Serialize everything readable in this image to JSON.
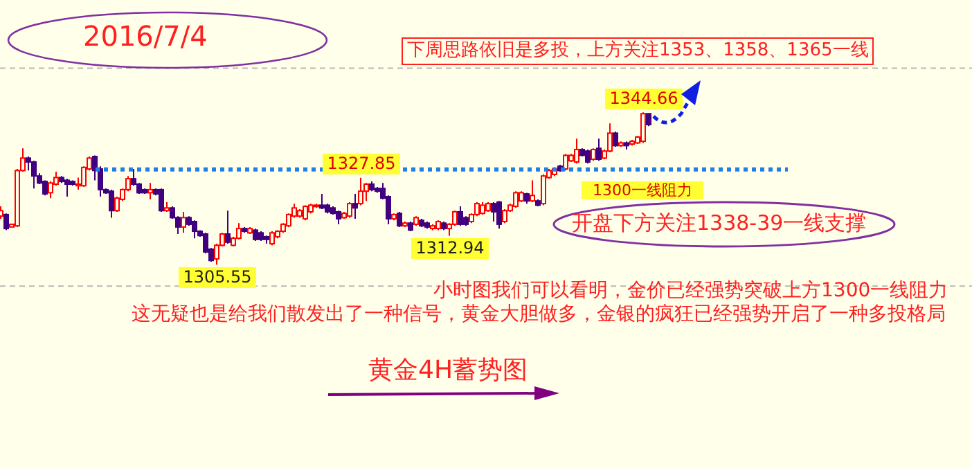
{
  "chart_data": {
    "type": "candlestick",
    "title": "2016/7/4",
    "annotations": [
      "下周思路依旧是多投，上方关注1353、1358、1365一线",
      "开盘下方关注1338-39一线支撑",
      "小时图我们可以看明，金价已经强势突破上方1300一线阻力",
      "这无疑也是给我们散发出了一种信号，黄金大胆做多，金银的疯狂已经强势开启了一种多投格局",
      "黄金4H蓄势图",
      {
        "text": "1344.66",
        "y": 1344.66
      },
      {
        "text": "1327.85",
        "y": 1327.85
      },
      {
        "text": "1305.55",
        "y": 1305.55
      },
      {
        "text": "1312.94",
        "y": 1312.94
      }
    ],
    "categories": [
      null,
      null,
      null,
      null,
      null,
      null,
      null,
      null,
      null,
      null,
      null,
      null,
      null,
      null,
      null,
      null,
      null,
      null,
      null,
      null,
      null,
      null,
      null,
      null,
      null,
      null,
      null,
      null,
      null,
      null,
      null,
      null,
      null,
      null,
      null,
      null,
      null,
      null,
      null,
      null,
      null,
      null,
      null,
      null,
      null,
      null,
      null,
      null,
      null,
      null,
      null,
      null,
      null,
      null,
      null,
      null,
      null,
      null,
      null,
      null,
      null,
      null,
      null,
      null,
      null,
      null,
      null,
      null,
      null,
      null,
      null,
      null,
      null,
      null,
      null,
      null,
      null,
      null,
      null,
      null,
      null,
      null,
      null,
      null,
      null,
      null,
      null,
      null,
      null,
      null,
      null,
      null,
      null,
      null,
      null,
      null,
      null,
      null,
      null,
      null,
      null,
      null,
      null,
      null,
      null,
      null,
      null,
      null,
      null,
      null,
      null,
      null,
      null,
      null,
      null,
      null,
      null,
      null
    ],
    "ohlc": [
      [
        1318.0,
        1320.5,
        1317.3,
        1319.4
      ],
      [
        1318.4,
        1318.7,
        1314.4,
        1314.8
      ],
      [
        1315.2,
        1315.9,
        1315.2,
        1315.9
      ],
      [
        1315.5,
        1330.1,
        1315.2,
        1329.7
      ],
      [
        1329.7,
        1335.4,
        1329.4,
        1332.9
      ],
      [
        1332.9,
        1333.3,
        1329.7,
        1331.9
      ],
      [
        1331.9,
        1332.2,
        1325.1,
        1328.3
      ],
      [
        1328.3,
        1329.0,
        1326.2,
        1326.5
      ],
      [
        1326.9,
        1327.2,
        1323.3,
        1323.7
      ],
      [
        1324.0,
        1326.9,
        1322.6,
        1326.5
      ],
      [
        1326.2,
        1329.4,
        1325.8,
        1327.9
      ],
      [
        1327.9,
        1328.3,
        1326.5,
        1326.9
      ],
      [
        1327.2,
        1327.6,
        1323.0,
        1326.2
      ],
      [
        1326.9,
        1327.2,
        1325.8,
        1326.2
      ],
      [
        1325.8,
        1327.9,
        1324.8,
        1326.2
      ],
      [
        1325.8,
        1330.8,
        1325.5,
        1330.5
      ],
      [
        1330.1,
        1333.3,
        1329.7,
        1332.9
      ],
      [
        1333.3,
        1333.6,
        1327.2,
        1329.7
      ],
      [
        1330.1,
        1330.8,
        1323.0,
        1324.8
      ],
      [
        1324.8,
        1325.1,
        1323.7,
        1324.0
      ],
      [
        1324.4,
        1324.8,
        1317.6,
        1319.4
      ],
      [
        1319.4,
        1323.0,
        1319.1,
        1322.6
      ],
      [
        1322.3,
        1325.1,
        1321.9,
        1324.8
      ],
      [
        1324.8,
        1328.3,
        1324.4,
        1327.6
      ],
      [
        1327.6,
        1330.1,
        1325.8,
        1326.2
      ],
      [
        1326.2,
        1326.5,
        1323.7,
        1324.0
      ],
      [
        1324.8,
        1325.1,
        1323.7,
        1324.0
      ],
      [
        1324.0,
        1326.5,
        1322.3,
        1324.8
      ],
      [
        1324.8,
        1325.1,
        1323.3,
        1323.7
      ],
      [
        1324.8,
        1325.1,
        1319.1,
        1319.4
      ],
      [
        1319.4,
        1321.6,
        1319.1,
        1320.1
      ],
      [
        1320.1,
        1320.5,
        1317.3,
        1317.6
      ],
      [
        1317.6,
        1318.0,
        1313.4,
        1315.2
      ],
      [
        1315.2,
        1319.1,
        1313.7,
        1317.6
      ],
      [
        1317.6,
        1318.0,
        1315.5,
        1315.9
      ],
      [
        1316.6,
        1316.9,
        1312.3,
        1314.1
      ],
      [
        1314.1,
        1314.4,
        1312.7,
        1313.0
      ],
      [
        1313.4,
        1313.7,
        1308.4,
        1308.8
      ],
      [
        1309.5,
        1309.8,
        1306.3,
        1306.6
      ],
      [
        1307.0,
        1310.9,
        1305.55,
        1310.5
      ],
      [
        1310.5,
        1313.7,
        1310.2,
        1313.4
      ],
      [
        1313.4,
        1319.4,
        1310.9,
        1311.3
      ],
      [
        1310.5,
        1312.7,
        1310.2,
        1312.3
      ],
      [
        1312.3,
        1316.2,
        1312.0,
        1314.8
      ],
      [
        1314.8,
        1315.2,
        1313.7,
        1314.1
      ],
      [
        1313.7,
        1315.2,
        1313.4,
        1314.8
      ],
      [
        1314.4,
        1314.8,
        1311.6,
        1312.0
      ],
      [
        1313.7,
        1314.1,
        1311.6,
        1312.0
      ],
      [
        1312.7,
        1313.0,
        1310.9,
        1312.0
      ],
      [
        1310.9,
        1314.1,
        1310.5,
        1313.7
      ],
      [
        1312.7,
        1314.4,
        1312.3,
        1314.1
      ],
      [
        1314.1,
        1316.2,
        1313.7,
        1315.9
      ],
      [
        1315.5,
        1318.7,
        1315.2,
        1318.4
      ],
      [
        1318.0,
        1321.2,
        1317.6,
        1320.1
      ],
      [
        1318.0,
        1319.8,
        1317.6,
        1319.4
      ],
      [
        1317.3,
        1320.8,
        1316.9,
        1320.5
      ],
      [
        1319.1,
        1321.2,
        1318.7,
        1320.8
      ],
      [
        1320.5,
        1321.2,
        1320.1,
        1320.8
      ],
      [
        1320.8,
        1323.7,
        1319.8,
        1320.1
      ],
      [
        1320.8,
        1321.2,
        1318.7,
        1319.1
      ],
      [
        1320.1,
        1320.5,
        1318.4,
        1318.7
      ],
      [
        1319.1,
        1319.4,
        1315.9,
        1317.3
      ],
      [
        1317.6,
        1319.1,
        1317.3,
        1318.7
      ],
      [
        1318.0,
        1321.6,
        1317.6,
        1321.2
      ],
      [
        1321.2,
        1323.7,
        1317.3,
        1320.1
      ],
      [
        1321.2,
        1327.85,
        1320.8,
        1324.4
      ],
      [
        1324.4,
        1326.5,
        1321.9,
        1326.2
      ],
      [
        1326.2,
        1326.9,
        1324.4,
        1324.8
      ],
      [
        1325.1,
        1325.5,
        1324.0,
        1324.4
      ],
      [
        1325.1,
        1326.5,
        1322.3,
        1322.6
      ],
      [
        1323.0,
        1323.3,
        1315.9,
        1317.3
      ],
      [
        1317.3,
        1318.7,
        1316.9,
        1318.4
      ],
      [
        1318.7,
        1319.1,
        1315.2,
        1315.5
      ],
      [
        1315.5,
        1316.6,
        1315.2,
        1316.2
      ],
      [
        1316.2,
        1316.6,
        1314.1,
        1314.4
      ],
      [
        1315.9,
        1318.0,
        1315.5,
        1317.6
      ],
      [
        1316.9,
        1317.3,
        1315.2,
        1315.5
      ],
      [
        1316.2,
        1316.6,
        1314.8,
        1315.2
      ],
      [
        1314.8,
        1315.9,
        1314.4,
        1315.5
      ],
      [
        1314.8,
        1316.9,
        1314.4,
        1316.6
      ],
      [
        1316.2,
        1316.6,
        1314.4,
        1314.8
      ],
      [
        1314.8,
        1316.2,
        1312.94,
        1315.9
      ],
      [
        1315.9,
        1319.4,
        1315.5,
        1319.1
      ],
      [
        1319.1,
        1320.5,
        1315.5,
        1315.9
      ],
      [
        1317.6,
        1318.0,
        1315.5,
        1315.9
      ],
      [
        1316.6,
        1318.7,
        1316.2,
        1318.4
      ],
      [
        1318.4,
        1321.6,
        1318.0,
        1321.2
      ],
      [
        1318.7,
        1321.6,
        1318.4,
        1320.8
      ],
      [
        1319.4,
        1321.6,
        1319.1,
        1321.2
      ],
      [
        1321.2,
        1321.6,
        1316.6,
        1319.1
      ],
      [
        1321.6,
        1321.9,
        1314.8,
        1315.9
      ],
      [
        1316.6,
        1319.8,
        1316.2,
        1319.4
      ],
      [
        1319.4,
        1321.2,
        1319.1,
        1320.8
      ],
      [
        1320.5,
        1324.4,
        1320.1,
        1324.0
      ],
      [
        1321.9,
        1324.4,
        1321.6,
        1324.0
      ],
      [
        1323.7,
        1324.0,
        1321.2,
        1321.9
      ],
      [
        1321.9,
        1327.2,
        1321.6,
        1323.3
      ],
      [
        1321.9,
        1322.3,
        1320.5,
        1320.8
      ],
      [
        1321.2,
        1328.7,
        1320.8,
        1328.3
      ],
      [
        1327.9,
        1330.1,
        1327.6,
        1329.7
      ],
      [
        1328.7,
        1330.5,
        1328.3,
        1330.1
      ],
      [
        1330.8,
        1331.2,
        1329.4,
        1329.7
      ],
      [
        1330.1,
        1334.0,
        1329.7,
        1333.6
      ],
      [
        1332.2,
        1334.0,
        1331.9,
        1333.6
      ],
      [
        1331.9,
        1337.9,
        1331.5,
        1335.1
      ],
      [
        1335.1,
        1335.4,
        1333.3,
        1333.6
      ],
      [
        1334.7,
        1335.1,
        1331.5,
        1331.9
      ],
      [
        1332.6,
        1335.4,
        1332.2,
        1335.1
      ],
      [
        1335.4,
        1337.9,
        1332.2,
        1332.6
      ],
      [
        1332.9,
        1335.1,
        1332.6,
        1334.7
      ],
      [
        1334.7,
        1341.8,
        1334.4,
        1339.3
      ],
      [
        1339.3,
        1339.7,
        1335.8,
        1336.1
      ],
      [
        1336.1,
        1337.2,
        1335.8,
        1336.8
      ],
      [
        1336.8,
        1337.2,
        1335.1,
        1336.1
      ],
      [
        1336.5,
        1337.6,
        1336.1,
        1337.2
      ],
      [
        1336.8,
        1338.6,
        1336.5,
        1338.3
      ],
      [
        1337.2,
        1344.66,
        1336.8,
        1344.3
      ],
      [
        1344.3,
        1344.3,
        1341.1,
        1341.5
      ]
    ],
    "colors": [
      "#ff0000",
      "#400080",
      "#ff0000",
      "#ff0000",
      "#ff0000",
      "#400080",
      "#400080",
      "#400080",
      "#400080",
      "#ff0000",
      "#ff0000",
      "#400080",
      "#400080",
      "#400080",
      "#ff0000",
      "#ff0000",
      "#ff0000",
      "#400080",
      "#400080",
      "#400080",
      "#400080",
      "#ff0000",
      "#ff0000",
      "#ff0000",
      "#400080",
      "#400080",
      "#400080",
      "#ff0000",
      "#400080",
      "#400080",
      "#ff0000",
      "#400080",
      "#400080",
      "#ff0000",
      "#400080",
      "#400080",
      "#400080",
      "#400080",
      "#400080",
      "#ff0000",
      "#ff0000",
      "#400080",
      "#ff0000",
      "#ff0000",
      "#400080",
      "#ff0000",
      "#400080",
      "#400080",
      "#400080",
      "#ff0000",
      "#ff0000",
      "#ff0000",
      "#ff0000",
      "#ff0000",
      "#ff0000",
      "#ff0000",
      "#ff0000",
      "#ff0000",
      "#400080",
      "#400080",
      "#400080",
      "#400080",
      "#ff0000",
      "#ff0000",
      "#400080",
      "#ff0000",
      "#ff0000",
      "#400080",
      "#400080",
      "#400080",
      "#400080",
      "#ff0000",
      "#400080",
      "#ff0000",
      "#400080",
      "#ff0000",
      "#400080",
      "#400080",
      "#ff0000",
      "#ff0000",
      "#400080",
      "#ff0000",
      "#ff0000",
      "#400080",
      "#400080",
      "#ff0000",
      "#ff0000",
      "#ff0000",
      "#ff0000",
      "#400080",
      "#400080",
      "#ff0000",
      "#ff0000",
      "#ff0000",
      "#ff0000",
      "#400080",
      "#ff0000",
      "#400080",
      "#ff0000",
      "#ff0000",
      "#ff0000",
      "#400080",
      "#ff0000",
      "#ff0000",
      "#ff0000",
      "#400080",
      "#400080",
      "#ff0000",
      "#400080",
      "#ff0000",
      "#ff0000",
      "#400080",
      "#ff0000",
      "#400080",
      "#ff0000",
      "#ff0000",
      "#ff0000",
      "#400080"
    ],
    "ref_lines": [
      {
        "axis": "y",
        "value": 1330,
        "label": "1300一线阻力",
        "color": "#1e80e8",
        "line_style": "dotted"
      }
    ],
    "ylim": [
      1253.3,
      1373.5
    ],
    "yticks": [
      {
        "value": 1300,
        "label": null
      },
      {
        "value": 1356,
        "label": null
      }
    ],
    "grid": "y",
    "tick_labels": false
  }
}
